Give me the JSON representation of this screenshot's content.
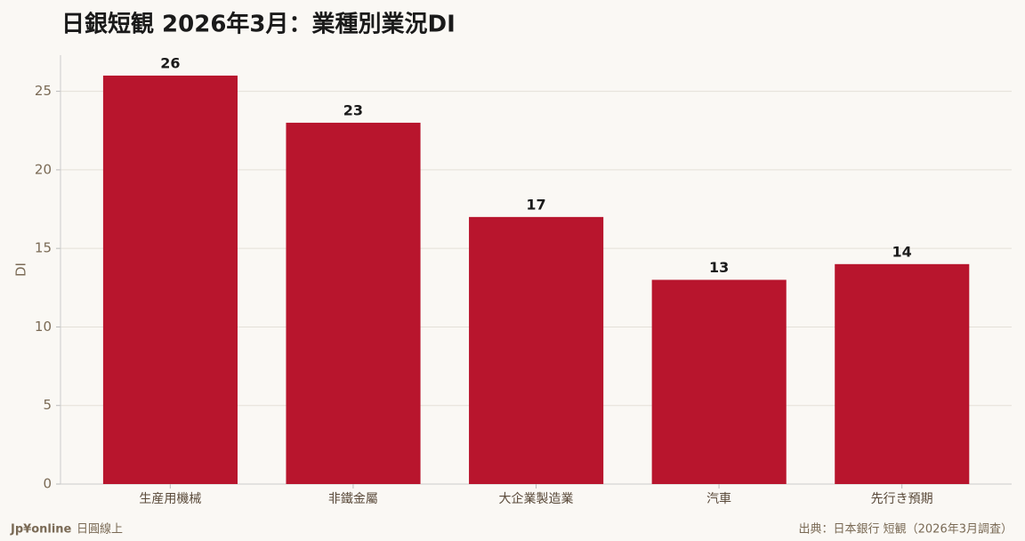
{
  "chart_data": {
    "type": "bar",
    "title": "日銀短観 2026年3月：業種別業況DI",
    "y_label": "DI",
    "categories": [
      "生産用機械",
      "非鐵金屬",
      "大企業製造業",
      "汽車",
      "先行き預期"
    ],
    "values": [
      26,
      23,
      17,
      13,
      14
    ],
    "color": "#b8152d",
    "ylim": [
      0,
      27.3
    ],
    "yticks": [
      0,
      5,
      10,
      15,
      20,
      25
    ],
    "grid": true
  },
  "footer": {
    "brand": "Jp¥online",
    "brand_sub": "日圓線上",
    "source": "出典：日本銀行 短観（2026年3月調査）"
  }
}
